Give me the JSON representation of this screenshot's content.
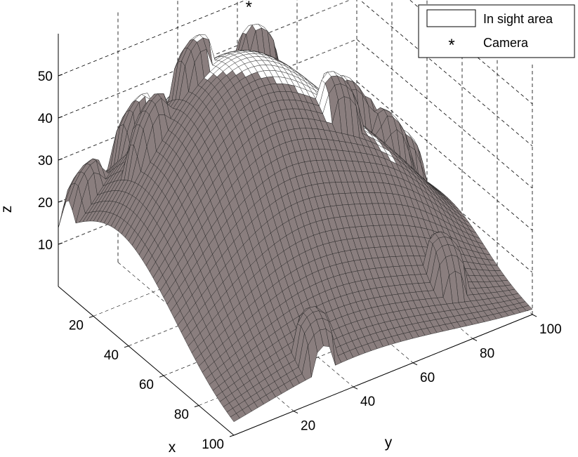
{
  "chart_data": {
    "type": "surface",
    "title": "",
    "axes": {
      "x": {
        "label": "x",
        "ticks": [
          20,
          40,
          60,
          80,
          100
        ],
        "range": [
          0,
          100
        ]
      },
      "y": {
        "label": "y",
        "ticks": [
          20,
          40,
          60,
          80,
          100
        ],
        "range": [
          0,
          100
        ]
      },
      "z": {
        "label": "z",
        "ticks": [
          10,
          20,
          30,
          40,
          50
        ],
        "range": [
          0,
          60
        ]
      }
    },
    "grid": "dashed",
    "legend": {
      "position": "top-right",
      "entries": [
        {
          "label": "In sight area",
          "marker": "rectangle",
          "color": "#ffffff"
        },
        {
          "label": "Camera",
          "marker": "asterisk",
          "color": "#ff0000"
        }
      ]
    },
    "terrain": {
      "description_values": {
        "main_hill": {
          "center": [
            35,
            40
          ],
          "height": 55
        },
        "bumps": [
          {
            "center": [
              8,
              20
            ]
          },
          {
            "center": [
              25,
              15
            ]
          },
          {
            "center": [
              5,
              5
            ]
          },
          {
            "center": [
              25,
              30
            ]
          },
          {
            "center": [
              20,
              55
            ]
          },
          {
            "center": [
              50,
              65
            ]
          },
          {
            "center": [
              40,
              75
            ]
          },
          {
            "center": [
              45,
              85
            ]
          },
          {
            "center": [
              95,
              30
            ]
          },
          {
            "center": [
              85,
              80
            ]
          },
          {
            "center": [
              35,
              95
            ]
          }
        ]
      },
      "camera": {
        "x": 15,
        "y": 55,
        "z": 56
      }
    }
  }
}
